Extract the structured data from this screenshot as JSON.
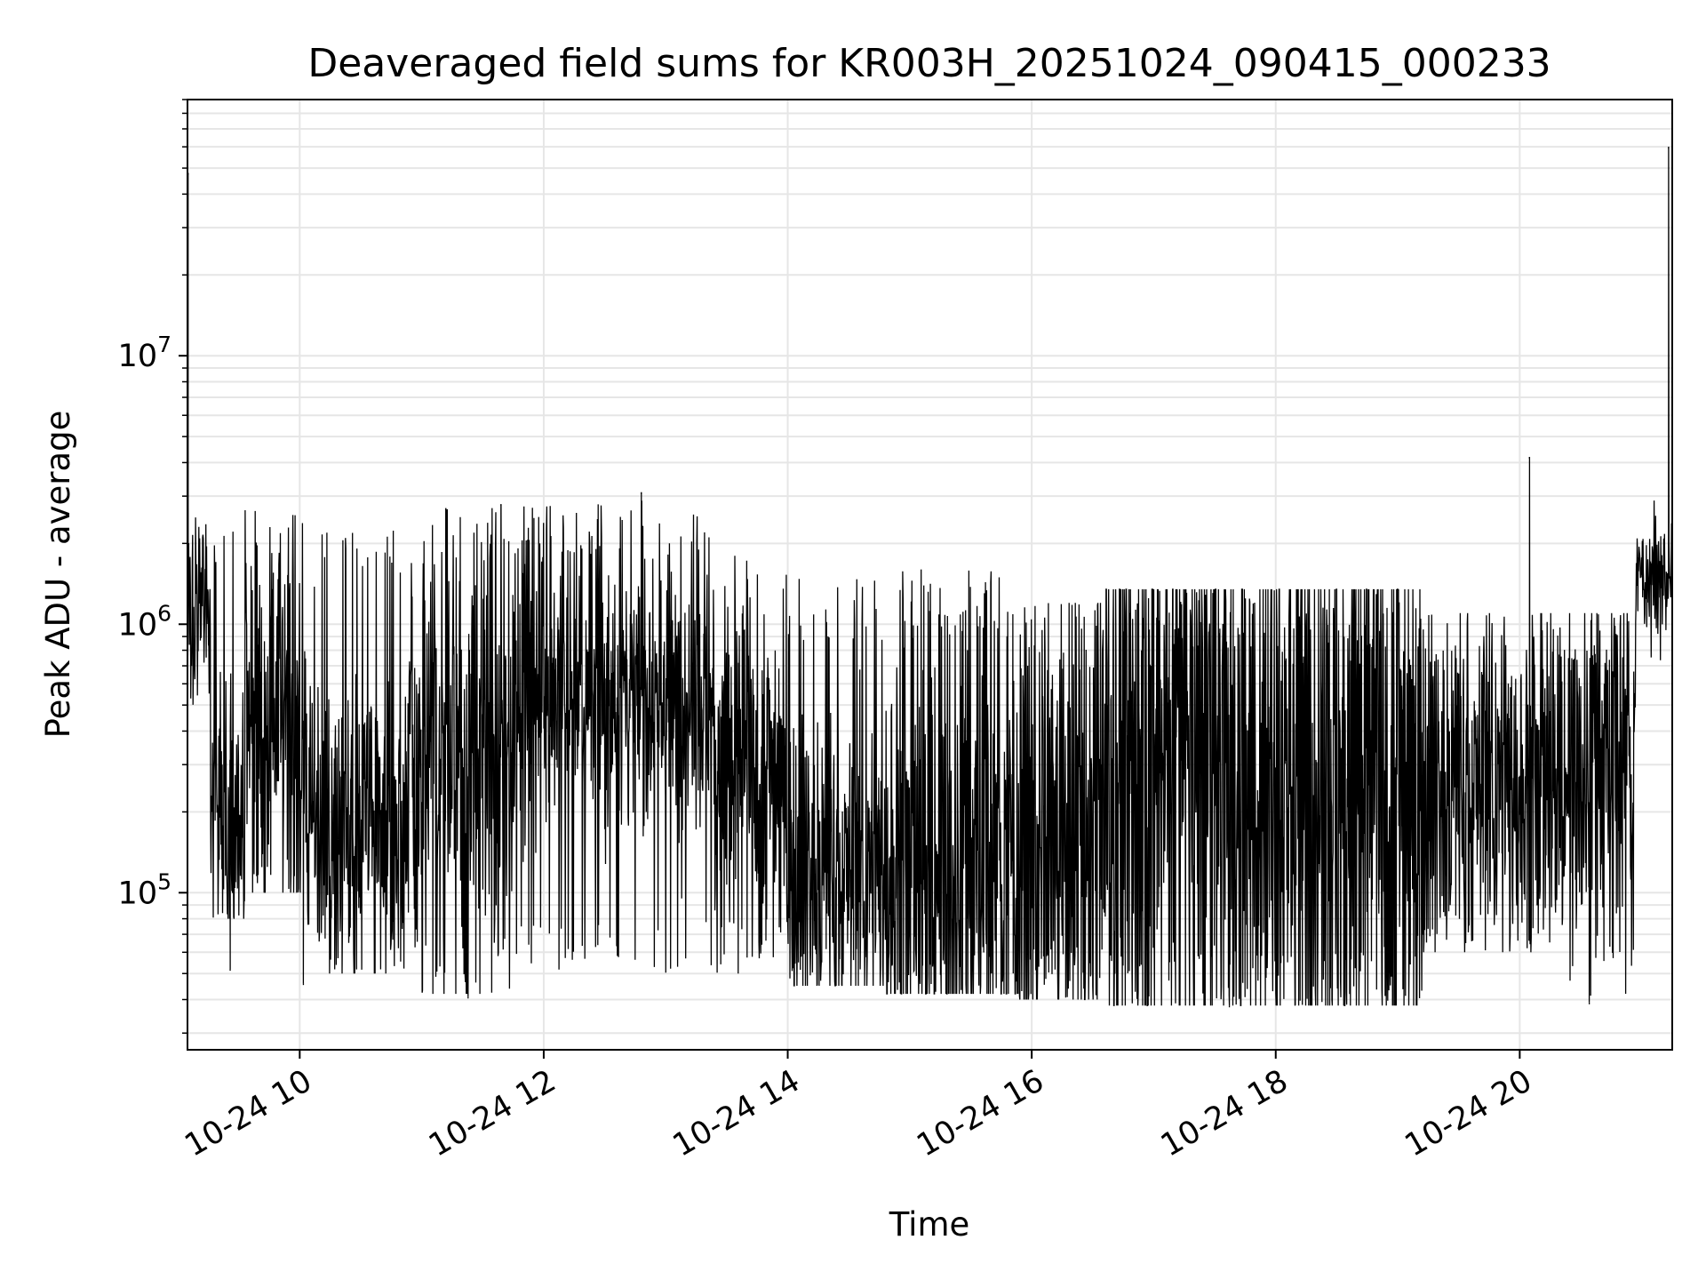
{
  "chart_data": {
    "type": "line",
    "title": "Deaveraged field sums for KR003H_20251024_090415_000233",
    "xlabel": "Time",
    "ylabel": "Peak ADU - average",
    "yscale": "log",
    "ylim": [
      26000,
      90000000
    ],
    "xlim_hours": [
      9.08,
      21.25
    ],
    "grid": true,
    "line_color": "#000000",
    "grid_color": "#e6e6e6",
    "x_ticks": [
      {
        "hour": 10,
        "label": "10-24 10"
      },
      {
        "hour": 12,
        "label": "10-24 12"
      },
      {
        "hour": 14,
        "label": "10-24 14"
      },
      {
        "hour": 16,
        "label": "10-24 16"
      },
      {
        "hour": 18,
        "label": "10-24 18"
      },
      {
        "hour": 20,
        "label": "10-24 20"
      }
    ],
    "y_ticks": [
      {
        "value": 100000,
        "base": "10",
        "exp": "5"
      },
      {
        "value": 1000000,
        "base": "10",
        "exp": "6"
      },
      {
        "value": 10000000,
        "base": "10",
        "exp": "7"
      }
    ],
    "series": [
      {
        "name": "Peak ADU - average",
        "segments": [
          {
            "start": 9.08,
            "end": 9.27,
            "center": 1200000,
            "spread": 0.35,
            "low": 500000,
            "high": 2500000
          },
          {
            "start": 9.27,
            "end": 9.55,
            "center": 200000,
            "spread": 0.45,
            "low": 80000,
            "high": 2500000
          },
          {
            "start": 9.55,
            "end": 10.05,
            "center": 400000,
            "spread": 0.75,
            "low": 100000,
            "high": 2700000
          },
          {
            "start": 10.05,
            "end": 10.9,
            "center": 180000,
            "spread": 0.55,
            "low": 50000,
            "high": 2300000
          },
          {
            "start": 10.9,
            "end": 11.75,
            "center": 280000,
            "spread": 0.85,
            "low": 42000,
            "high": 2800000
          },
          {
            "start": 11.75,
            "end": 13.4,
            "center": 550000,
            "spread": 0.5,
            "low": 50000,
            "high": 3000000
          },
          {
            "start": 13.4,
            "end": 14.0,
            "center": 300000,
            "spread": 0.6,
            "low": 50000,
            "high": 1800000
          },
          {
            "start": 14.0,
            "end": 14.8,
            "center": 120000,
            "spread": 0.55,
            "low": 45000,
            "high": 1500000
          },
          {
            "start": 14.8,
            "end": 15.9,
            "center": 120000,
            "spread": 0.9,
            "low": 42000,
            "high": 1600000
          },
          {
            "start": 15.9,
            "end": 16.6,
            "center": 150000,
            "spread": 1.0,
            "low": 40000,
            "high": 1200000
          },
          {
            "start": 16.6,
            "end": 19.2,
            "center": 300000,
            "spread": 1.3,
            "low": 38000,
            "high": 1350000
          },
          {
            "start": 19.2,
            "end": 20.4,
            "center": 250000,
            "spread": 0.6,
            "low": 60000,
            "high": 1100000
          },
          {
            "start": 20.4,
            "end": 20.95,
            "center": 300000,
            "spread": 0.7,
            "low": 40000,
            "high": 1100000
          },
          {
            "start": 20.95,
            "end": 21.25,
            "center": 1500000,
            "spread": 0.18,
            "low": 700000,
            "high": 3000000
          }
        ],
        "spikes": [
          {
            "hour": 9.085,
            "value": 48000000
          },
          {
            "hour": 9.09,
            "value": 2000000
          },
          {
            "hour": 20.08,
            "value": 4200000
          },
          {
            "hour": 21.22,
            "value": 60000000
          },
          {
            "hour": 9.43,
            "value": 52000
          },
          {
            "hour": 10.03,
            "value": 46000
          },
          {
            "hour": 11.38,
            "value": 41000
          },
          {
            "hour": 20.57,
            "value": 39000
          },
          {
            "hour": 17.62,
            "value": 38000
          },
          {
            "hour": 12.8,
            "value": 3100000
          },
          {
            "hour": 11.65,
            "value": 2800000
          }
        ]
      }
    ]
  }
}
